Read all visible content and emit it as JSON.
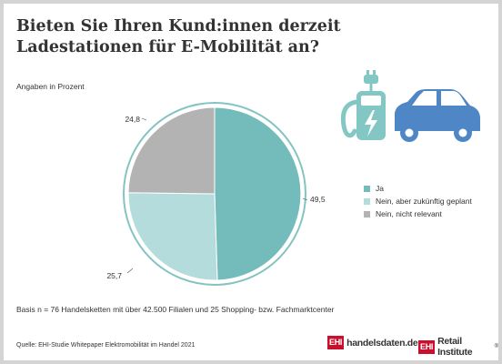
{
  "title": "Bieten Sie Ihren Kund:innen derzeit Ladestationen für E-Mobilität an?",
  "subtitle": "Angaben in Prozent",
  "basis": "Basis n = 76 Handelsketten mit über 42.500 Filialen und 25 Shopping- bzw. Fachmarktcenter",
  "source": "Quelle: EHI-Studie Whitepaper Elektromobilität im Handel 2021",
  "logos": {
    "ehi_mark": "EHI",
    "handelsdaten": "handelsdaten.de",
    "retail_institute": "Retail Institute",
    "reg": "®"
  },
  "icons": [
    "charging-station-icon",
    "electric-car-icon",
    "lightning-bolt-icon",
    "plug-icon"
  ],
  "colors": {
    "teal": "#74bcbb",
    "light_teal": "#b4dcdc",
    "gray": "#b3b3b3",
    "ring": "#84c3c2",
    "icon_teal": "#82c7c4",
    "icon_blue": "#4f86c6",
    "brand_red": "#c8102e"
  },
  "chart_data": {
    "type": "pie",
    "title": "Bieten Sie Ihren Kund:innen derzeit Ladestationen für E-Mobilität an?",
    "subtitle": "Angaben in Prozent",
    "legend_position": "right",
    "slices": [
      {
        "label": "Ja",
        "value": 49.5,
        "value_label": "49,5",
        "color": "#74bcbb"
      },
      {
        "label": "Nein, aber zukünftig geplant",
        "value": 25.7,
        "value_label": "25,7",
        "color": "#b4dcdc"
      },
      {
        "label": "Nein, nicht relevant",
        "value": 24.8,
        "value_label": "24,8",
        "color": "#b3b3b3"
      }
    ]
  }
}
